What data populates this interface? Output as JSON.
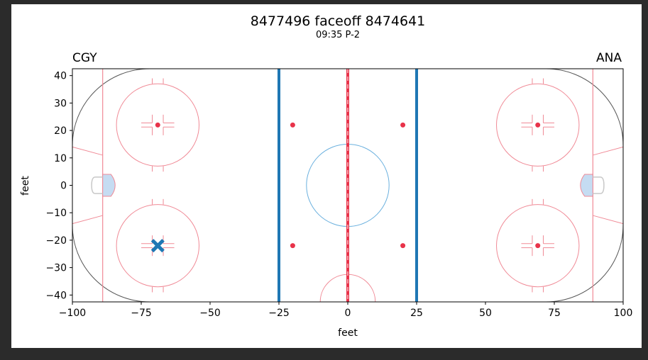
{
  "chart_data": {
    "type": "scatter",
    "title": "8477496 faceoff 8474641",
    "subtitle": "09:35 P-2",
    "xlabel": "feet",
    "ylabel": "feet",
    "xlim": [
      -100,
      100
    ],
    "ylim": [
      -42.5,
      42.5
    ],
    "xticks": [
      -100,
      -75,
      -50,
      -25,
      0,
      25,
      50,
      75,
      100
    ],
    "yticks": [
      -40,
      -30,
      -20,
      -10,
      0,
      10,
      20,
      30,
      40
    ],
    "team_left": "CGY",
    "team_right": "ANA",
    "points": [
      {
        "x": -69,
        "y": -22,
        "marker": "X",
        "color": "#1f77b4"
      }
    ],
    "grid": false
  },
  "colors": {
    "red_line": "#e8334a",
    "blue_line": "#1f77b4",
    "faint_red": "#f08a96",
    "center_circle": "#6ab0de",
    "crease": "#c5dcf2"
  }
}
